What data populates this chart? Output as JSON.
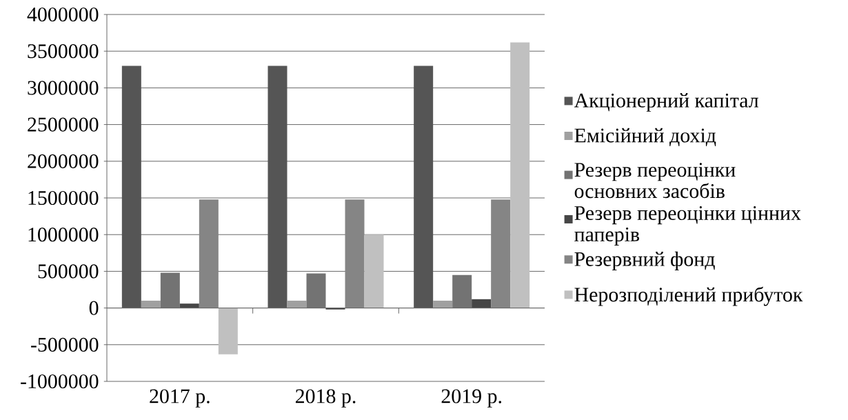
{
  "chart_data": {
    "type": "bar",
    "categories": [
      "2017 р.",
      "2018 р.",
      "2019 р."
    ],
    "series": [
      {
        "name": "Акціонерний капітал",
        "color": "#555555",
        "values": [
          3300000,
          3300000,
          3300000
        ]
      },
      {
        "name": "Емісійний дохід",
        "color": "#a0a0a0",
        "values": [
          100000,
          100000,
          100000
        ]
      },
      {
        "name": "Резерв переоцінки основних засобів",
        "color": "#737373",
        "values": [
          480000,
          470000,
          450000
        ]
      },
      {
        "name": "Резерв переоцінки цінних паперів",
        "color": "#464646",
        "values": [
          60000,
          -20000,
          120000
        ]
      },
      {
        "name": "Резервний фонд",
        "color": "#858585",
        "values": [
          1480000,
          1480000,
          1480000
        ]
      },
      {
        "name": "Нерозподілений прибуток",
        "color": "#c0c0c0",
        "values": [
          -630000,
          1000000,
          3620000
        ]
      }
    ],
    "ylim": [
      -1000000,
      4000000
    ],
    "yticks": [
      -1000000,
      -500000,
      0,
      500000,
      1000000,
      1500000,
      2000000,
      2500000,
      3000000,
      3500000,
      4000000
    ],
    "grid": "y",
    "legend": "right"
  }
}
